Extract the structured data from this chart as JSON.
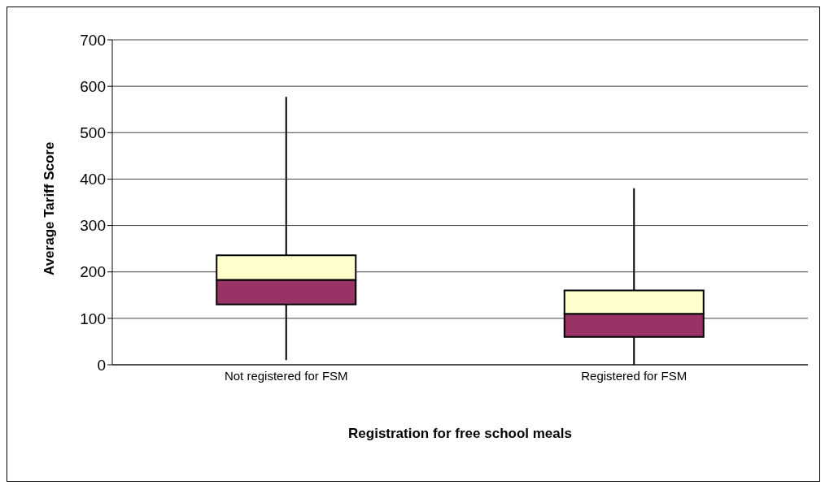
{
  "chart_data": {
    "type": "box",
    "xlabel": "Registration for free school  meals",
    "ylabel": "Average Tariff Score",
    "categories": [
      "Not registered for FSM",
      "Registered for FSM"
    ],
    "boxes": [
      {
        "low": 10,
        "q1": 130,
        "median": 183,
        "q3": 236,
        "high": 577
      },
      {
        "low": 0,
        "q1": 60,
        "median": 110,
        "q3": 160,
        "high": 380
      }
    ],
    "colors": [
      "#993366",
      "#993366"
    ],
    "ylim": [
      0,
      700
    ],
    "yticks": [
      0,
      100,
      200,
      300,
      400,
      500,
      600,
      700
    ],
    "grid": "y"
  }
}
